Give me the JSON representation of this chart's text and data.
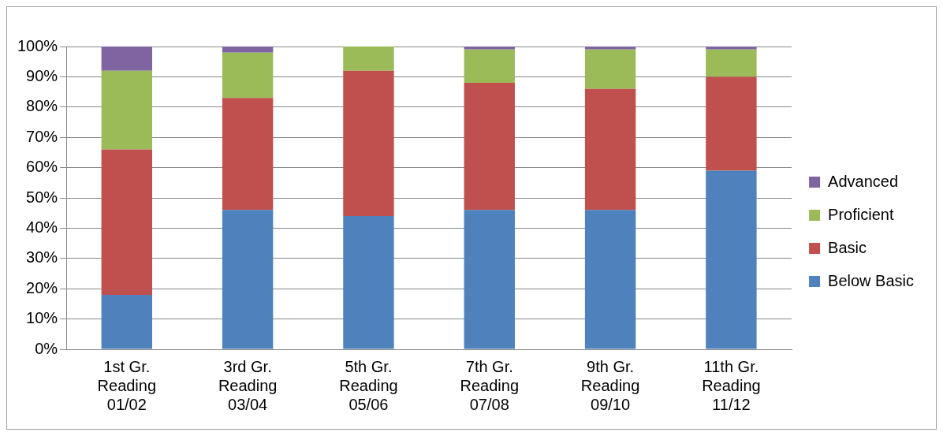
{
  "chart_data": {
    "type": "bar",
    "stacked": true,
    "categories": [
      "1st Gr.\nReading\n01/02",
      "3rd Gr.\nReading\n03/04",
      "5th Gr.\nReading\n05/06",
      "7th Gr.\nReading\n07/08",
      "9th Gr.\nReading\n09/10",
      "11th Gr.\nReading\n11/12"
    ],
    "series": [
      {
        "name": "Below Basic",
        "color": "#4f81bd",
        "values": [
          18,
          46,
          44,
          46,
          46,
          59
        ]
      },
      {
        "name": "Basic",
        "color": "#c0504d",
        "values": [
          48,
          37,
          48,
          42,
          40,
          31
        ]
      },
      {
        "name": "Proficient",
        "color": "#9bbb59",
        "values": [
          26,
          15,
          8,
          11,
          13,
          9
        ]
      },
      {
        "name": "Advanced",
        "color": "#8064a2",
        "values": [
          8,
          2,
          0,
          1,
          1,
          1
        ]
      }
    ],
    "ylim": [
      0,
      100
    ],
    "yticks": [
      {
        "value": 0,
        "label": "0%"
      },
      {
        "value": 10,
        "label": "10%"
      },
      {
        "value": 20,
        "label": "20%"
      },
      {
        "value": 30,
        "label": "30%"
      },
      {
        "value": 40,
        "label": "40%"
      },
      {
        "value": 50,
        "label": "50%"
      },
      {
        "value": 60,
        "label": "60%"
      },
      {
        "value": 70,
        "label": "70%"
      },
      {
        "value": 80,
        "label": "80%"
      },
      {
        "value": 90,
        "label": "90%"
      },
      {
        "value": 100,
        "label": "100%"
      }
    ],
    "grid": "y",
    "legend": "right"
  }
}
